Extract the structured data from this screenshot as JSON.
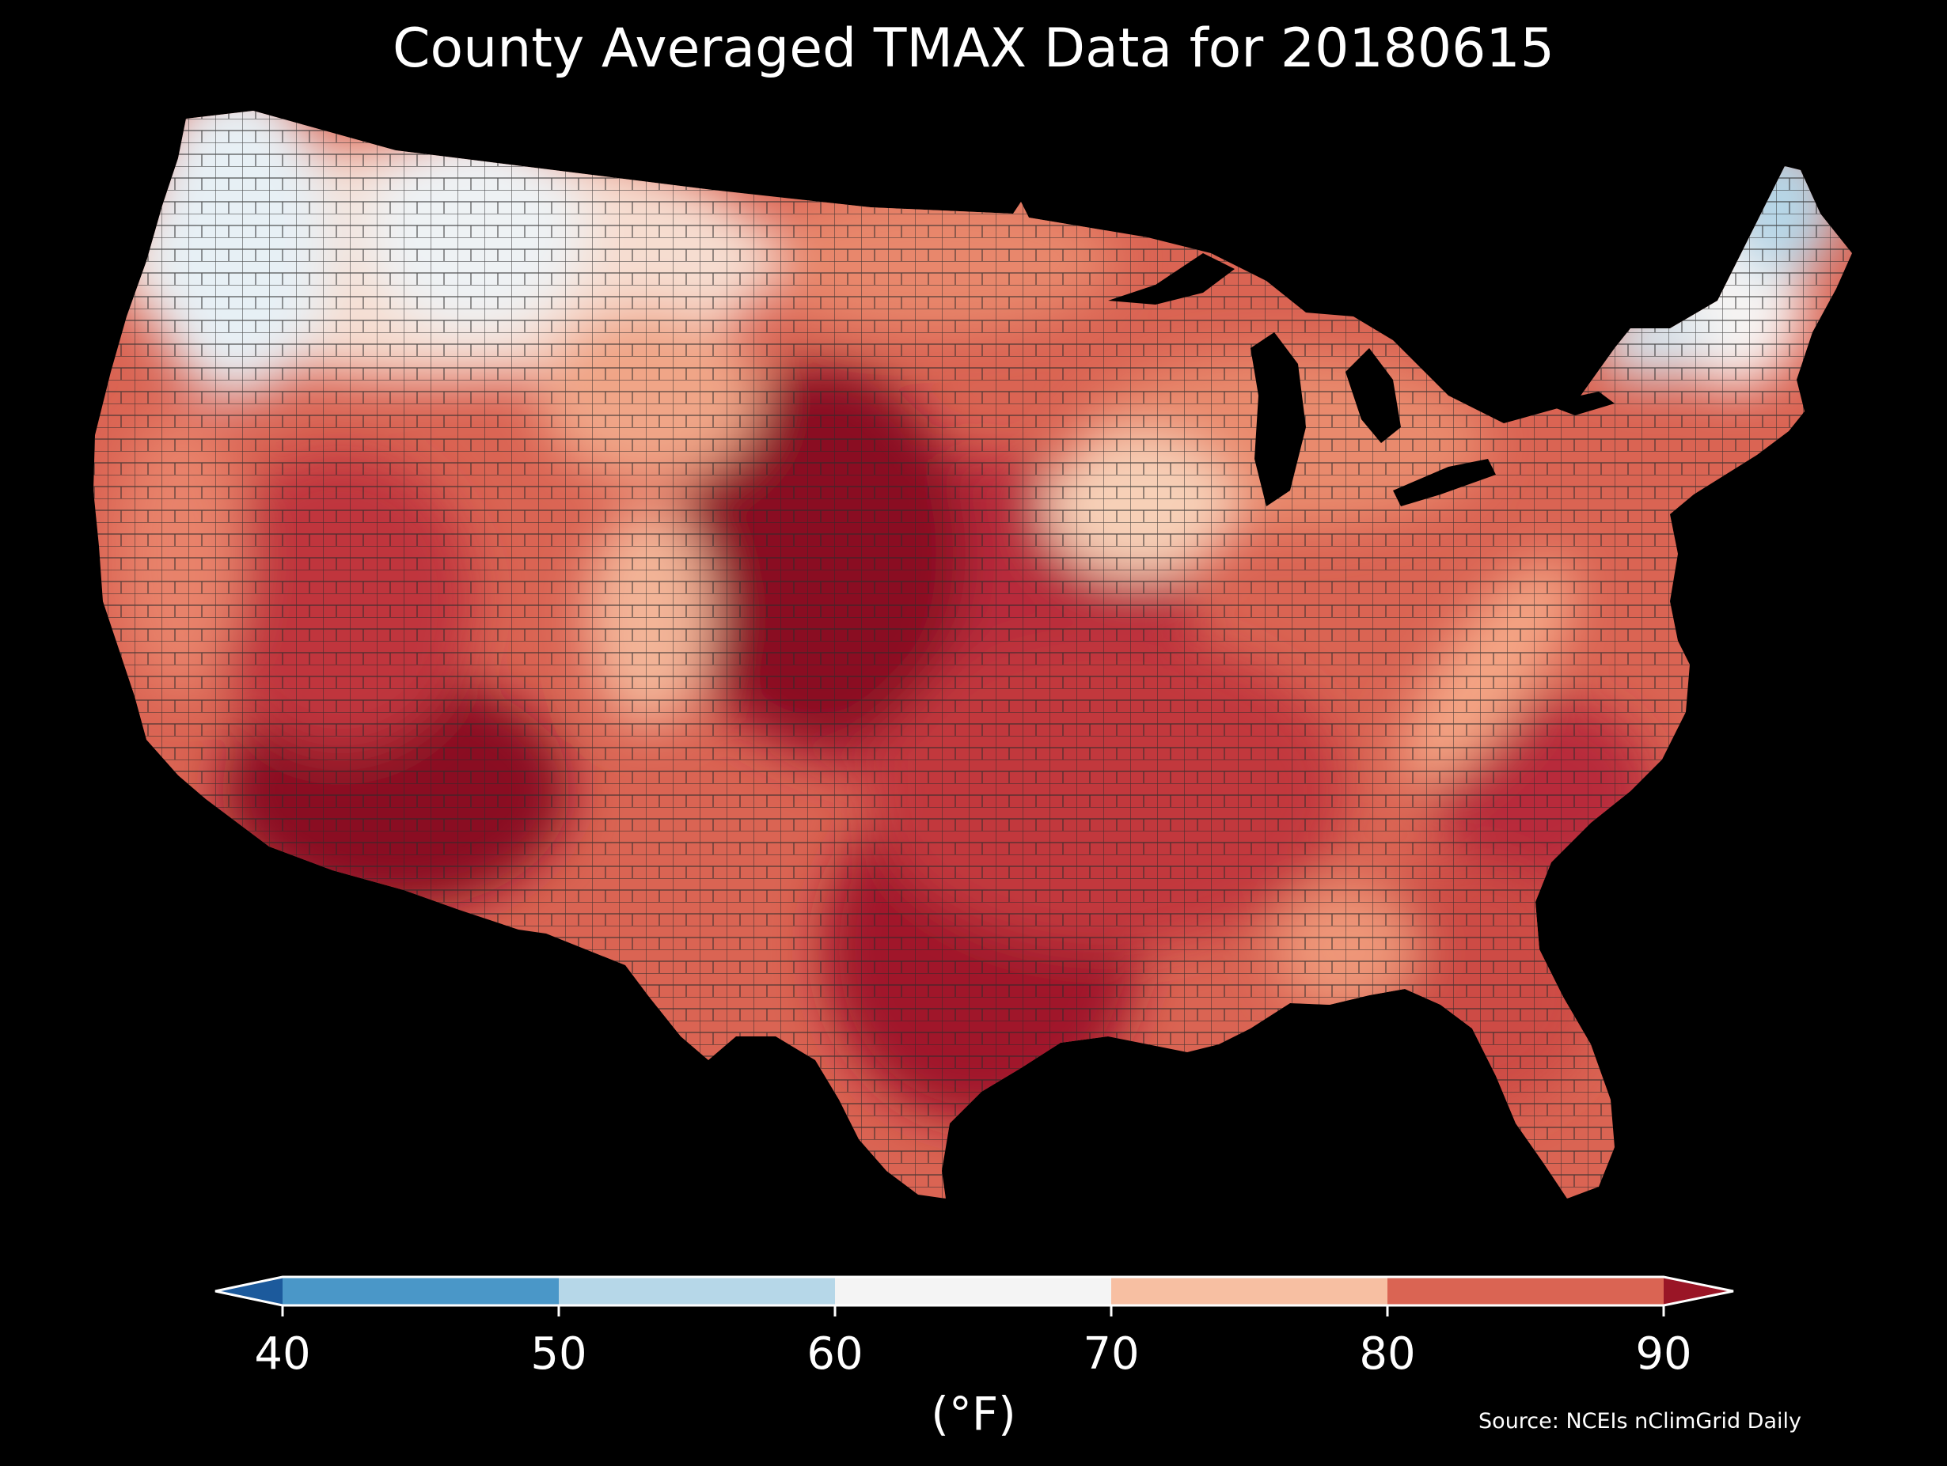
{
  "title": "County Averaged TMAX Data for 20180615",
  "colorbar": {
    "ticks": [
      "40",
      "50",
      "60",
      "70",
      "80",
      "90"
    ],
    "bins": [
      {
        "range": "<40",
        "color": "#1c5a9c"
      },
      {
        "range": "40-50",
        "color": "#4a97c8"
      },
      {
        "range": "50-60",
        "color": "#b6d7e8"
      },
      {
        "range": "60-70",
        "color": "#f4f4f4"
      },
      {
        "range": "70-80",
        "color": "#f7bfa2"
      },
      {
        "range": "80-90",
        "color": "#da6453"
      },
      {
        "range": ">90",
        "color": "#9a1526"
      }
    ],
    "unit": "(°F)"
  },
  "source": "Source: NCEIs nClimGrid Daily",
  "map": {
    "region": "Contiguous United States, county level",
    "background_color": "#000000",
    "county_border_color": "#3a3a3a"
  }
}
